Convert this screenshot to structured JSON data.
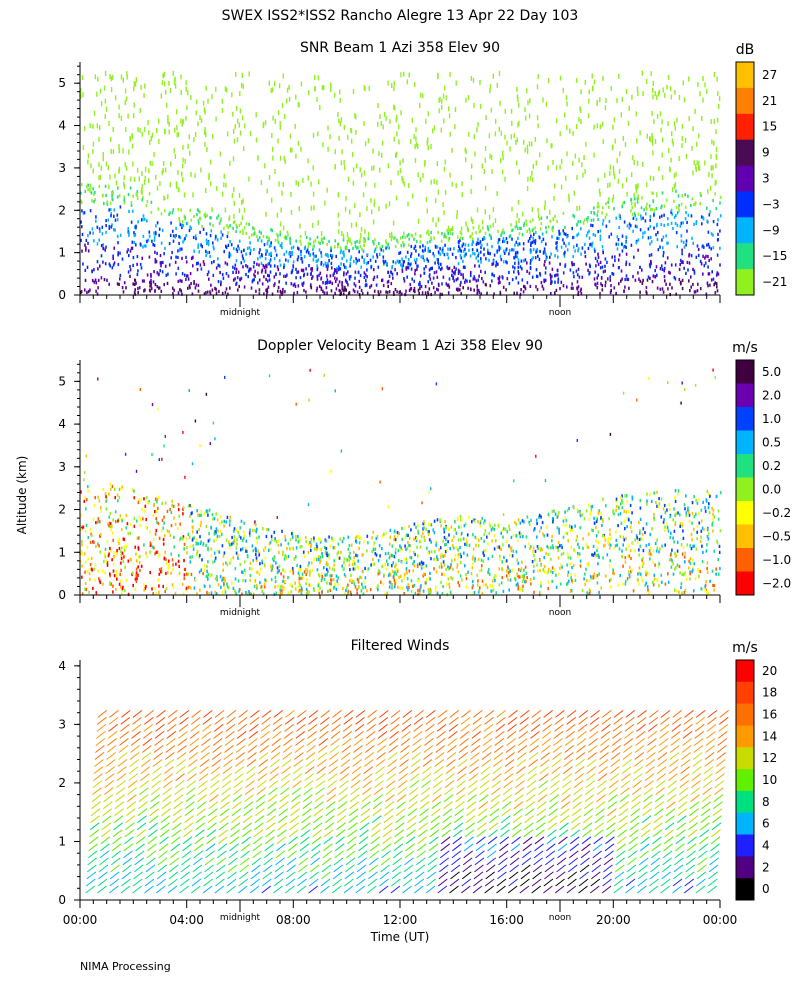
{
  "header": {
    "title": "SWEX ISS2*ISS2 Rancho Alegre  13 Apr 22 Day 103",
    "footer": "NIMA Processing",
    "y_axis_label": "Altitude (km)",
    "x_axis_label": "Time (UT)",
    "midnight_label": "midnight",
    "noon_label": "noon"
  },
  "chart_data": [
    {
      "type": "heatmap",
      "title": "SNR Beam 1 Azi 358 Elev 90",
      "unit": "dB",
      "ylabel": "Altitude (km)",
      "ylim": [
        0,
        5.5
      ],
      "yticks": [
        "0",
        "1",
        "2",
        "3",
        "4",
        "5"
      ],
      "xlim": [
        0,
        24
      ],
      "colorbar": {
        "labels": [
          "27",
          "21",
          "15",
          "9",
          "3",
          "−3",
          "−9",
          "−15",
          "−21"
        ],
        "colors": [
          "#ffc000",
          "#ff8000",
          "#ff2000",
          "#4a0a56",
          "#6000b0",
          "#0030ff",
          "#00b4ff",
          "#20e080",
          "#90f020"
        ]
      },
      "boundary_top_km": [
        [
          0,
          2.6
        ],
        [
          1.5,
          2.6
        ],
        [
          3,
          2.3
        ],
        [
          5,
          1.9
        ],
        [
          7,
          1.55
        ],
        [
          9,
          1.35
        ],
        [
          10,
          1.3
        ],
        [
          12,
          1.4
        ],
        [
          14,
          1.6
        ],
        [
          16,
          1.7
        ],
        [
          18,
          1.9
        ],
        [
          20,
          2.3
        ],
        [
          22,
          2.45
        ],
        [
          24,
          2.4
        ]
      ]
    },
    {
      "type": "heatmap",
      "title": "Doppler Velocity Beam 1 Azi 358 Elev 90",
      "unit": "m/s",
      "ylabel": "Altitude (km)",
      "ylim": [
        0,
        5.5
      ],
      "yticks": [
        "0",
        "1",
        "2",
        "3",
        "4",
        "5"
      ],
      "xlim": [
        0,
        24
      ],
      "colorbar": {
        "labels": [
          "5.0",
          "2.0",
          "1.0",
          "0.5",
          "0.2",
          "0.0",
          "−0.2",
          "−0.5",
          "−1.0",
          "−2.0"
        ],
        "colors": [
          "#400040",
          "#6a00b0",
          "#0040ff",
          "#00b4ff",
          "#20e080",
          "#90f020",
          "#ffff00",
          "#ffc000",
          "#ff6000",
          "#ff0000"
        ]
      },
      "boundary_top_km": [
        [
          0,
          2.6
        ],
        [
          1.5,
          2.6
        ],
        [
          3,
          2.3
        ],
        [
          5,
          1.95
        ],
        [
          7,
          1.6
        ],
        [
          9,
          1.35
        ],
        [
          10,
          1.35
        ],
        [
          12,
          1.6
        ],
        [
          14,
          1.85
        ],
        [
          16,
          1.75
        ],
        [
          18,
          2.0
        ],
        [
          20,
          2.3
        ],
        [
          22,
          2.45
        ],
        [
          24,
          2.4
        ]
      ]
    },
    {
      "type": "wind_barbs",
      "title": "Filtered Winds",
      "unit": "m/s",
      "ylabel": "Altitude (km)",
      "xlabel": "Time (UT)",
      "ylim": [
        0,
        4.1
      ],
      "yticks": [
        "0",
        "1",
        "2",
        "3",
        "4"
      ],
      "xlim": [
        0,
        24
      ],
      "xticks": [
        "00:00",
        "04:00",
        "08:00",
        "12:00",
        "16:00",
        "20:00",
        "00:00"
      ],
      "colorbar": {
        "labels": [
          "20",
          "18",
          "16",
          "14",
          "12",
          "10",
          "8",
          "6",
          "4",
          "2",
          "0"
        ],
        "colors": [
          "#ff0000",
          "#ff4000",
          "#ff7000",
          "#ff9a00",
          "#c8dc00",
          "#60f000",
          "#00e080",
          "#00b4ff",
          "#2020ff",
          "#500080",
          "#000000"
        ]
      }
    }
  ]
}
